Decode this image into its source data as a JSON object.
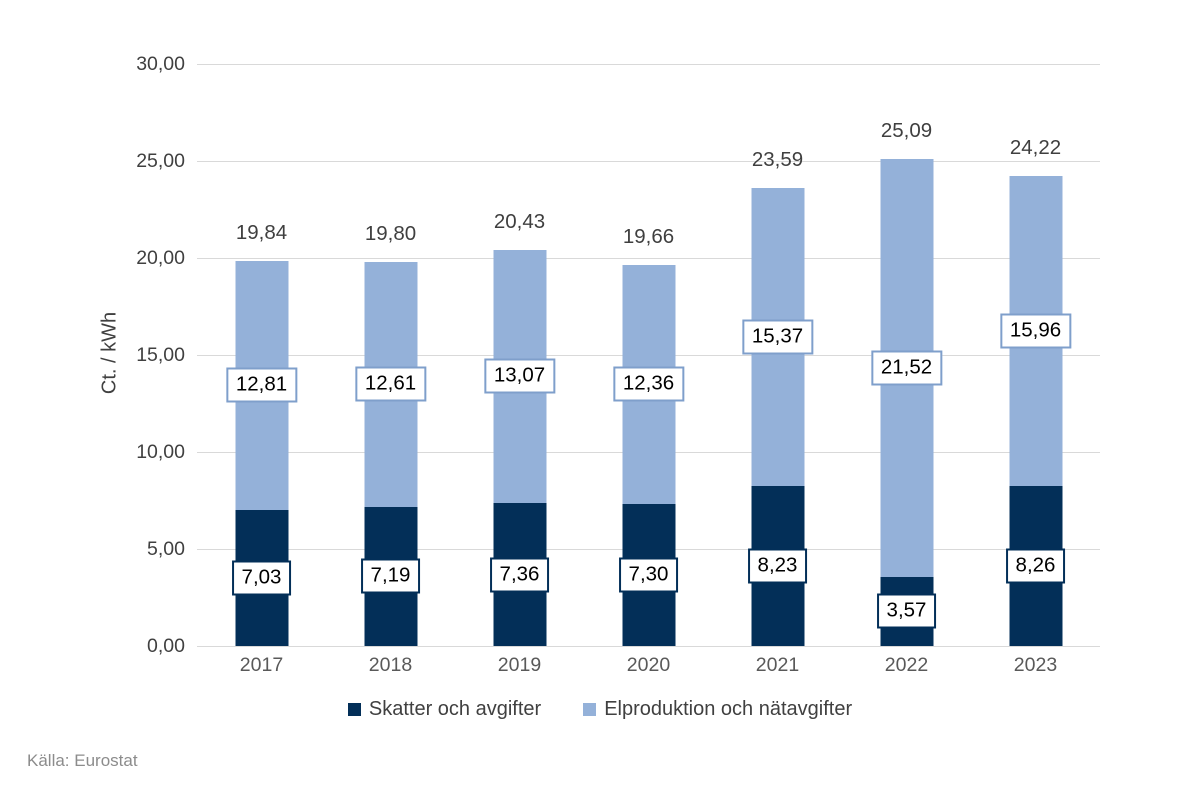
{
  "source_note": "Källa: Eurostat",
  "colors": {
    "series_dark": "#032f58",
    "series_light": "#94b1d9",
    "label_box_border_dark": "#032f58",
    "label_box_border_light": "#7f9fcb",
    "gridline": "#d9d9d9",
    "axis_text": "#404040",
    "year_text": "#595959"
  },
  "chart_data": {
    "type": "bar",
    "stacked": true,
    "title": "",
    "xlabel": "",
    "ylabel": "Ct. / kWh",
    "ylim": [
      0,
      30
    ],
    "ytick_step": 5,
    "ytick_labels": [
      "0,00",
      "5,00",
      "10,00",
      "15,00",
      "20,00",
      "25,00",
      "30,00"
    ],
    "grid": true,
    "legend_position": "bottom",
    "categories": [
      "2017",
      "2018",
      "2019",
      "2020",
      "2021",
      "2022",
      "2023"
    ],
    "series": [
      {
        "name": "Skatter och avgifter",
        "color": "#032f58",
        "values": [
          7.03,
          7.19,
          7.36,
          7.3,
          8.23,
          3.57,
          8.26
        ],
        "labels": [
          "7,03",
          "7,19",
          "7,36",
          "7,30",
          "8,23",
          "3,57",
          "8,26"
        ]
      },
      {
        "name": "Elproduktion och nätavgifter",
        "color": "#94b1d9",
        "values": [
          12.81,
          12.61,
          13.07,
          12.36,
          15.37,
          21.52,
          15.96
        ],
        "labels": [
          "12,81",
          "12,61",
          "13,07",
          "12,36",
          "15,37",
          "21,52",
          "15,96"
        ]
      }
    ],
    "totals": [
      19.84,
      19.8,
      20.43,
      19.66,
      23.59,
      25.09,
      24.22
    ],
    "total_labels": [
      "19,84",
      "19,80",
      "20,43",
      "19,66",
      "23,59",
      "25,09",
      "24,22"
    ]
  }
}
